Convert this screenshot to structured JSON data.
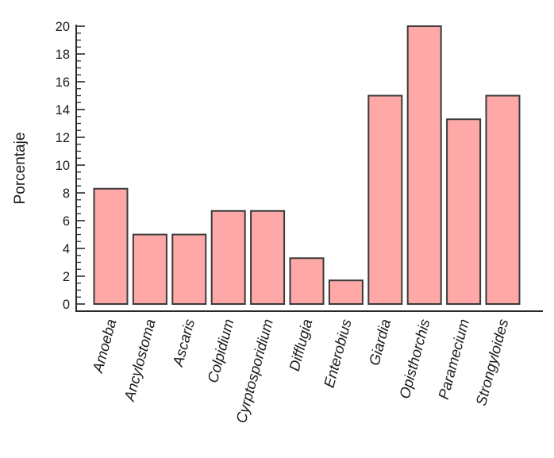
{
  "chart_data": {
    "type": "bar",
    "title": "",
    "xlabel": "",
    "ylabel": "Porcentaje",
    "categories": [
      "Amoeba",
      "Ancylostoma",
      "Ascaris",
      "Colpidium",
      "Cyrptosporidium",
      "Difflugia",
      "Enterobius",
      "Giardia",
      "Opisthorchis",
      "Paramecium",
      "Strongyloides"
    ],
    "values": [
      8.3,
      5,
      5,
      6.7,
      6.7,
      3.3,
      1.7,
      15,
      20,
      13.3,
      15
    ],
    "ylim": [
      0,
      20
    ],
    "ytick_step": 2,
    "minor_tick_step": 0.5,
    "ytick_labels": [
      "0",
      "2",
      "4",
      "6",
      "8",
      "10",
      "12",
      "14",
      "16",
      "18",
      "20"
    ],
    "grid": false,
    "legend_position": "none",
    "category_style": "italic",
    "label_rotation_deg": -75,
    "colors": {
      "bar_fill": "#ffa8a8",
      "bar_stroke": "#3a3a3a",
      "axis": "#2a2a2a",
      "text": "#1a1a1a",
      "background": "#ffffff"
    }
  }
}
